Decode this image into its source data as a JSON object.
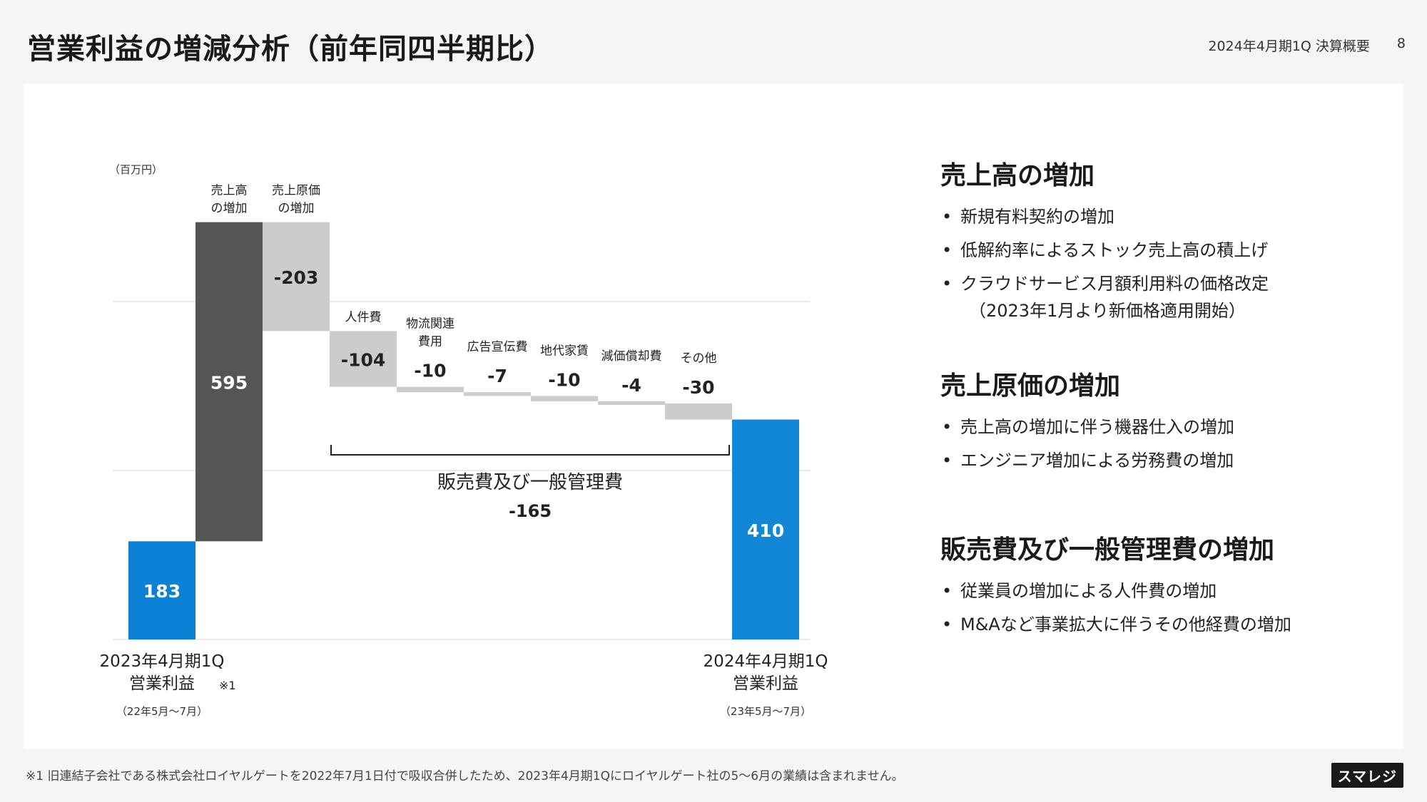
{
  "header": {
    "title": "営業利益の増減分析（前年同四半期比）",
    "period": "2024年4月期1Q 決算概要",
    "page": "8"
  },
  "chart_data": {
    "type": "waterfall",
    "unit_label": "（百万円）",
    "colors": {
      "start": "#0b82d6",
      "increase": "#555555",
      "decrease": "#cccccc",
      "end": "#1287d8"
    },
    "steps": [
      {
        "name": "start",
        "kind": "total",
        "value": 183,
        "display": "183",
        "label": [
          "2023年4月期1Q",
          "営業利益"
        ],
        "note": "※1",
        "sub": "（22年5月～7月）"
      },
      {
        "name": "sales-increase",
        "kind": "delta",
        "value": 595,
        "display": "595",
        "label": [
          "売上高",
          "の増加"
        ]
      },
      {
        "name": "cogs-increase",
        "kind": "delta",
        "value": -203,
        "display": "-203",
        "label": [
          "売上原価",
          "の増加"
        ]
      },
      {
        "name": "personnel",
        "kind": "delta",
        "value": -104,
        "display": "-104",
        "label": [
          "人件費"
        ]
      },
      {
        "name": "logistics",
        "kind": "delta",
        "value": -10,
        "display": "-10",
        "label": [
          "物流関連",
          "費用"
        ]
      },
      {
        "name": "advertising",
        "kind": "delta",
        "value": -7,
        "display": "-7",
        "label": [
          "広告宣伝費"
        ]
      },
      {
        "name": "rent",
        "kind": "delta",
        "value": -10,
        "display": "-10",
        "label": [
          "地代家賃"
        ]
      },
      {
        "name": "depreciation",
        "kind": "delta",
        "value": -4,
        "display": "-4",
        "label": [
          "減価償却費"
        ]
      },
      {
        "name": "other",
        "kind": "delta",
        "value": -30,
        "display": "-30",
        "label": [
          "その他"
        ]
      },
      {
        "name": "end",
        "kind": "total",
        "value": 410,
        "display": "410",
        "label": [
          "2024年4月期1Q",
          "営業利益"
        ],
        "sub": "（23年5月～7月）"
      }
    ],
    "sga_group": {
      "label": "販売費及び一般管理費",
      "value": "-165"
    }
  },
  "analysis": {
    "sections": [
      {
        "heading": "売上高の増加",
        "items": [
          {
            "text": "新規有料契約の増加"
          },
          {
            "text": "低解約率によるストック売上高の積上げ"
          },
          {
            "text": "クラウドサービス月額利用料の価格改定",
            "sub": "（2023年1月より新価格適用開始）"
          }
        ]
      },
      {
        "heading": "売上原価の増加",
        "items": [
          {
            "text": "売上高の増加に伴う機器仕入の増加"
          },
          {
            "text": "エンジニア増加による労務費の増加"
          }
        ]
      },
      {
        "heading": "販売費及び一般管理費の増加",
        "items": [
          {
            "text": "従業員の増加による人件費の増加"
          },
          {
            "text": "M&Aなど事業拡大に伴うその他経費の増加"
          }
        ]
      }
    ]
  },
  "footer": {
    "note": "※1 旧連結子会社である株式会社ロイヤルゲートを2022年7月1日付で吸収合併したため、2023年4月期1Qにロイヤルゲート社の5～6月の業績は含まれません。",
    "logo": "スマレジ"
  }
}
